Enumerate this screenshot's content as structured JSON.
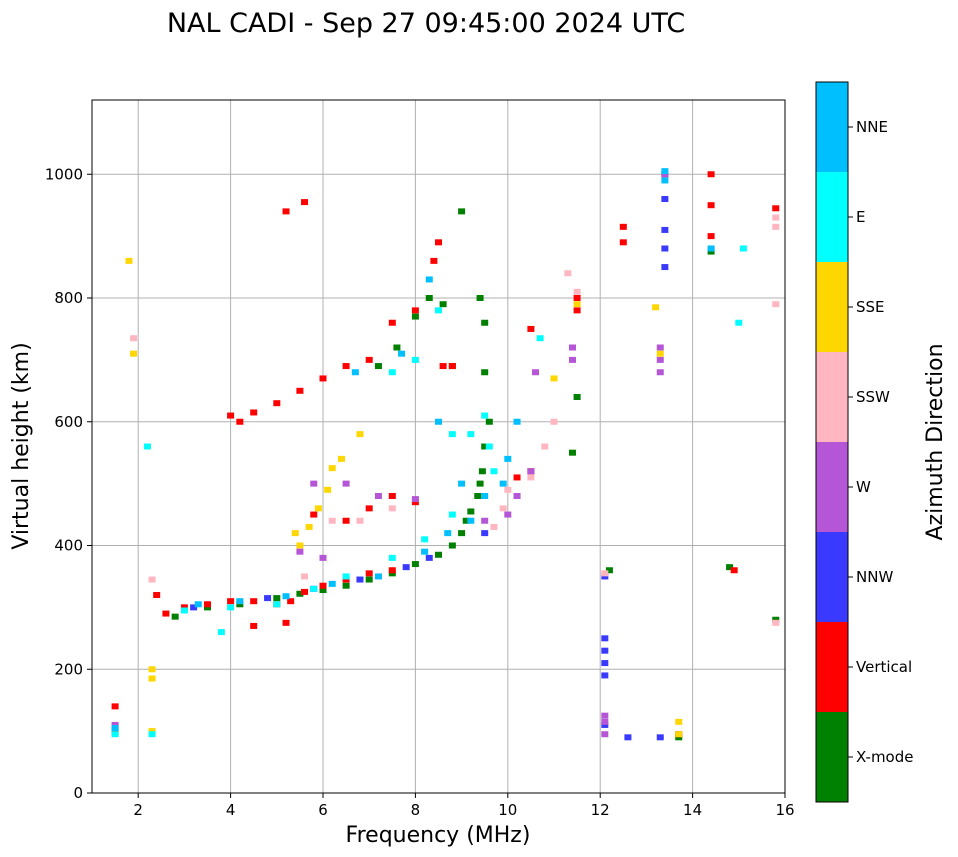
{
  "chart_data": {
    "type": "scatter",
    "title": "NAL CADI - Sep 27 09:45:00 2024 UTC",
    "xlabel": "Frequency (MHz)",
    "ylabel": "Virtual height (km)",
    "xlim": [
      1,
      16
    ],
    "ylim": [
      0,
      1120
    ],
    "xticks": [
      2,
      4,
      6,
      8,
      10,
      12,
      14,
      16
    ],
    "yticks": [
      0,
      200,
      400,
      600,
      800,
      1000
    ],
    "grid": true,
    "colorbar": {
      "label": "Azimuth Direction",
      "categories": [
        "X-mode",
        "Vertical",
        "NNW",
        "W",
        "SSW",
        "SSE",
        "E",
        "NNE"
      ],
      "colors": {
        "X-mode": "#008000",
        "Vertical": "#ff0000",
        "NNW": "#3a3aff",
        "W": "#b556d6",
        "SSW": "#ffb6c1",
        "SSE": "#ffd700",
        "E": "#00ffff",
        "NNE": "#00bfff"
      }
    },
    "series": [
      {
        "name": "X-mode",
        "points": [
          [
            2.8,
            285
          ],
          [
            3.5,
            300
          ],
          [
            4.2,
            305
          ],
          [
            5.0,
            315
          ],
          [
            5.5,
            322
          ],
          [
            6.0,
            328
          ],
          [
            6.5,
            335
          ],
          [
            7.0,
            345
          ],
          [
            7.5,
            355
          ],
          [
            8.0,
            370
          ],
          [
            8.5,
            385
          ],
          [
            8.8,
            400
          ],
          [
            9.0,
            420
          ],
          [
            9.1,
            440
          ],
          [
            9.2,
            455
          ],
          [
            9.35,
            480
          ],
          [
            9.4,
            500
          ],
          [
            9.45,
            520
          ],
          [
            9.5,
            560
          ],
          [
            9.6,
            600
          ],
          [
            7.2,
            690
          ],
          [
            7.6,
            720
          ],
          [
            8.0,
            770
          ],
          [
            8.3,
            800
          ],
          [
            8.6,
            790
          ],
          [
            8.8,
            690
          ],
          [
            9.0,
            940
          ],
          [
            9.4,
            800
          ],
          [
            9.5,
            760
          ],
          [
            9.5,
            680
          ],
          [
            11.5,
            640
          ],
          [
            11.4,
            550
          ],
          [
            13.7,
            90
          ],
          [
            14.4,
            875
          ],
          [
            12.2,
            360
          ],
          [
            15.8,
            280
          ],
          [
            14.8,
            365
          ]
        ]
      },
      {
        "name": "Vertical",
        "points": [
          [
            2.4,
            320
          ],
          [
            2.6,
            290
          ],
          [
            3.0,
            300
          ],
          [
            3.5,
            305
          ],
          [
            4.0,
            310
          ],
          [
            4.5,
            310
          ],
          [
            5.0,
            305
          ],
          [
            5.3,
            310
          ],
          [
            5.6,
            325
          ],
          [
            6.0,
            335
          ],
          [
            6.5,
            345
          ],
          [
            7.0,
            355
          ],
          [
            7.5,
            360
          ],
          [
            4.0,
            610
          ],
          [
            4.2,
            600
          ],
          [
            4.5,
            615
          ],
          [
            5.0,
            630
          ],
          [
            5.5,
            650
          ],
          [
            6.0,
            670
          ],
          [
            6.5,
            690
          ],
          [
            7.0,
            700
          ],
          [
            7.5,
            760
          ],
          [
            8.0,
            780
          ],
          [
            8.5,
            890
          ],
          [
            8.6,
            690
          ],
          [
            8.8,
            690
          ],
          [
            5.8,
            450
          ],
          [
            6.5,
            440
          ],
          [
            7.0,
            460
          ],
          [
            7.5,
            480
          ],
          [
            8.0,
            470
          ],
          [
            10.2,
            510
          ],
          [
            10.5,
            520
          ],
          [
            5.2,
            940
          ],
          [
            5.6,
            955
          ],
          [
            12.5,
            890
          ],
          [
            12.5,
            915
          ],
          [
            13.4,
            1000
          ],
          [
            14.4,
            1000
          ],
          [
            14.4,
            950
          ],
          [
            14.4,
            900
          ],
          [
            14.9,
            360
          ],
          [
            15.8,
            945
          ],
          [
            11.5,
            780
          ],
          [
            11.5,
            800
          ],
          [
            10.5,
            750
          ],
          [
            13.7,
            95
          ],
          [
            1.5,
            100
          ],
          [
            1.5,
            140
          ],
          [
            4.5,
            270
          ],
          [
            5.2,
            275
          ],
          [
            8.4,
            860
          ]
        ]
      },
      {
        "name": "NNW",
        "points": [
          [
            3.2,
            300
          ],
          [
            4.8,
            315
          ],
          [
            5.8,
            330
          ],
          [
            6.8,
            345
          ],
          [
            7.8,
            365
          ],
          [
            8.3,
            380
          ],
          [
            9.5,
            420
          ],
          [
            13.4,
            960
          ],
          [
            13.4,
            880
          ],
          [
            13.4,
            910
          ],
          [
            13.4,
            850
          ],
          [
            12.1,
            250
          ],
          [
            12.1,
            230
          ],
          [
            12.1,
            210
          ],
          [
            12.1,
            190
          ],
          [
            12.1,
            350
          ],
          [
            12.6,
            90
          ],
          [
            13.3,
            90
          ],
          [
            12.1,
            110
          ]
        ]
      },
      {
        "name": "W",
        "points": [
          [
            5.8,
            500
          ],
          [
            6.5,
            500
          ],
          [
            7.2,
            480
          ],
          [
            8.0,
            475
          ],
          [
            9.5,
            440
          ],
          [
            10.0,
            450
          ],
          [
            10.2,
            480
          ],
          [
            10.5,
            520
          ],
          [
            13.3,
            720
          ],
          [
            13.3,
            680
          ],
          [
            13.3,
            700
          ],
          [
            11.4,
            720
          ],
          [
            11.4,
            700
          ],
          [
            12.1,
            115
          ],
          [
            12.1,
            95
          ],
          [
            12.1,
            125
          ],
          [
            1.5,
            110
          ],
          [
            10.6,
            680
          ],
          [
            13.4,
            1000
          ],
          [
            5.5,
            390
          ],
          [
            6.0,
            380
          ]
        ]
      },
      {
        "name": "SSW",
        "points": [
          [
            6.2,
            440
          ],
          [
            6.8,
            440
          ],
          [
            7.5,
            460
          ],
          [
            9.7,
            430
          ],
          [
            9.9,
            460
          ],
          [
            10.0,
            490
          ],
          [
            10.5,
            510
          ],
          [
            11.0,
            600
          ],
          [
            11.3,
            840
          ],
          [
            11.5,
            810
          ],
          [
            15.8,
            930
          ],
          [
            15.8,
            915
          ],
          [
            15.8,
            790
          ],
          [
            15.8,
            275
          ],
          [
            12.1,
            355
          ],
          [
            1.9,
            735
          ],
          [
            2.3,
            345
          ],
          [
            5.6,
            350
          ],
          [
            10.8,
            560
          ]
        ]
      },
      {
        "name": "SSE",
        "points": [
          [
            5.5,
            400
          ],
          [
            5.7,
            430
          ],
          [
            5.9,
            460
          ],
          [
            6.1,
            490
          ],
          [
            6.2,
            525
          ],
          [
            6.4,
            540
          ],
          [
            6.8,
            580
          ],
          [
            2.3,
            200
          ],
          [
            2.3,
            185
          ],
          [
            2.3,
            100
          ],
          [
            1.8,
            860
          ],
          [
            1.9,
            710
          ],
          [
            11.0,
            670
          ],
          [
            13.2,
            785
          ],
          [
            13.3,
            710
          ],
          [
            13.7,
            115
          ],
          [
            13.7,
            95
          ],
          [
            11.5,
            790
          ],
          [
            5.4,
            420
          ]
        ]
      },
      {
        "name": "E",
        "points": [
          [
            3.0,
            295
          ],
          [
            4.0,
            300
          ],
          [
            5.0,
            305
          ],
          [
            5.8,
            330
          ],
          [
            6.5,
            350
          ],
          [
            7.5,
            380
          ],
          [
            8.2,
            410
          ],
          [
            8.8,
            450
          ],
          [
            9.2,
            580
          ],
          [
            9.5,
            610
          ],
          [
            9.6,
            560
          ],
          [
            9.7,
            520
          ],
          [
            7.5,
            680
          ],
          [
            8.0,
            700
          ],
          [
            8.5,
            780
          ],
          [
            8.8,
            580
          ],
          [
            15.1,
            880
          ],
          [
            15.0,
            760
          ],
          [
            10.7,
            735
          ],
          [
            2.2,
            560
          ],
          [
            3.8,
            260
          ],
          [
            1.5,
            95
          ],
          [
            2.3,
            95
          ]
        ]
      },
      {
        "name": "NNE",
        "points": [
          [
            3.3,
            305
          ],
          [
            4.2,
            310
          ],
          [
            5.2,
            318
          ],
          [
            6.2,
            338
          ],
          [
            7.2,
            350
          ],
          [
            8.2,
            390
          ],
          [
            8.7,
            420
          ],
          [
            9.2,
            440
          ],
          [
            9.5,
            480
          ],
          [
            9.9,
            500
          ],
          [
            10.0,
            540
          ],
          [
            10.2,
            600
          ],
          [
            6.7,
            680
          ],
          [
            7.7,
            710
          ],
          [
            8.3,
            830
          ],
          [
            8.5,
            600
          ],
          [
            13.4,
            990
          ],
          [
            13.4,
            1005
          ],
          [
            14.4,
            880
          ],
          [
            9.0,
            500
          ],
          [
            1.5,
            105
          ]
        ]
      }
    ]
  }
}
